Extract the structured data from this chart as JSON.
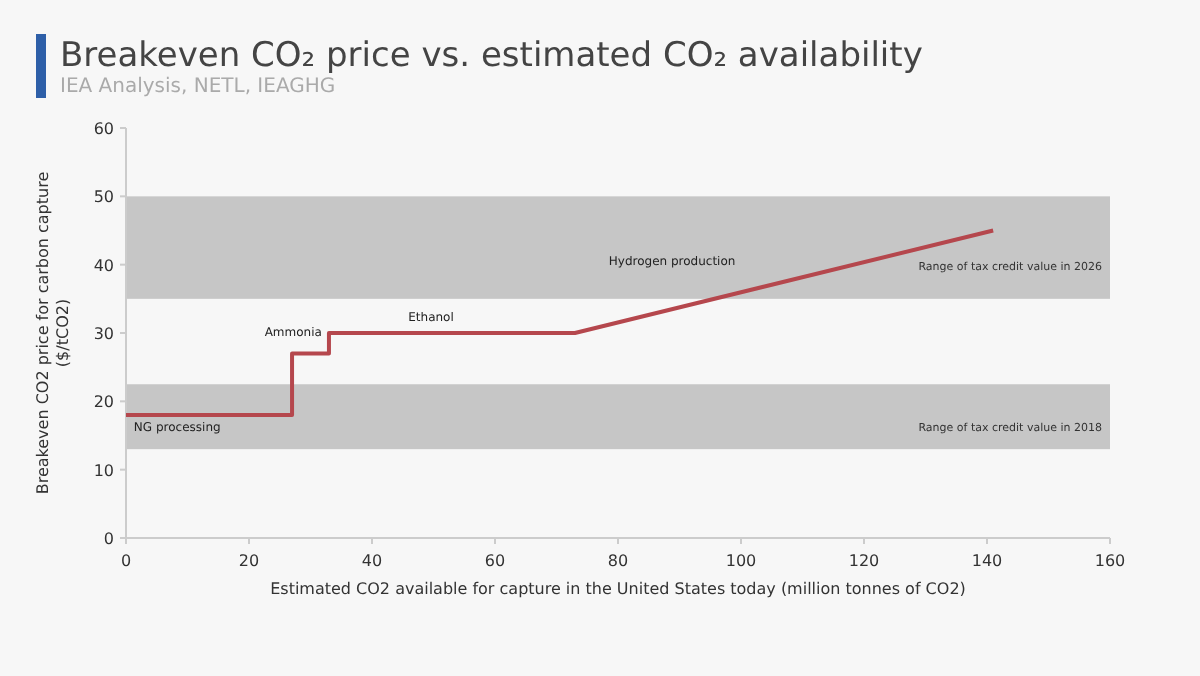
{
  "chart_data": {
    "type": "line",
    "title": "Breakeven CO₂ price vs. estimated CO₂ availability",
    "subtitle": "IEA Analysis, NETL, IEAGHG",
    "xlabel": "Estimated CO2 available for capture in the United States today (million tonnes of CO2)",
    "ylabel": "Breakeven CO2 price for carbon capture ($/tCO2)",
    "series": [
      {
        "color": "#b5474d",
        "x": [
          0,
          27,
          27,
          33,
          33,
          73,
          141
        ],
        "values": [
          18,
          18,
          27,
          27,
          30,
          30,
          45
        ]
      }
    ],
    "xlim": [
      0,
      160
    ],
    "xticks": [
      0,
      20,
      40,
      60,
      80,
      100,
      120,
      140,
      160
    ],
    "ylim": [
      0,
      60
    ],
    "yticks": [
      0,
      10,
      20,
      30,
      40,
      50,
      60
    ],
    "bands": [
      {
        "axis": "y",
        "from": 13,
        "to": 22.5,
        "label": "Range of tax credit value in 2018",
        "color": "#c6c6c6"
      },
      {
        "axis": "y",
        "from": 35,
        "to": 50,
        "label": "Range of tax credit value in 2026",
        "color": "#c6c6c6"
      }
    ],
    "annotations": [
      "NG processing",
      "Ammonia",
      "Ethanol",
      "Hydrogen production"
    ],
    "grid": false
  }
}
